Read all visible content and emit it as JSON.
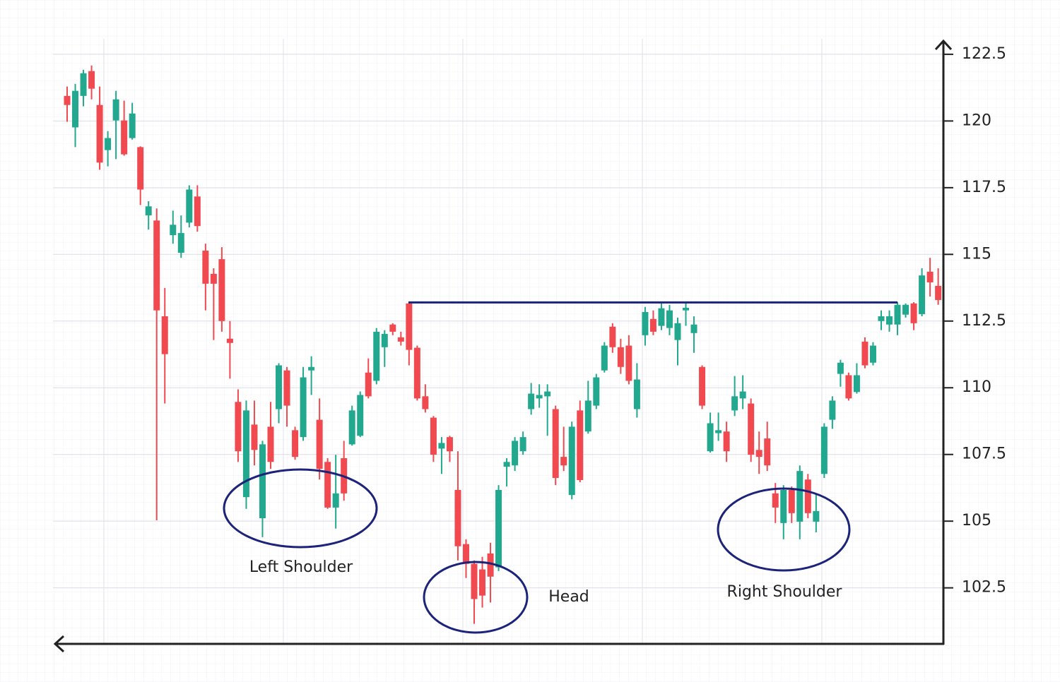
{
  "chart_data": {
    "type": "candlestick",
    "up_color": "#22a88e",
    "down_color": "#f04a50",
    "open": [
      120.94,
      119.76,
      120.94,
      121.87,
      120.6,
      118.91,
      120.02,
      120.02,
      119.36,
      119.02,
      116.46,
      116.27,
      112.68,
      115.72,
      115.06,
      116.19,
      117.17,
      115.14,
      114.27,
      114.82,
      111.84,
      109.47,
      105.9,
      108.62,
      105.11,
      108.54,
      109.2,
      110.65,
      108.41,
      108.15,
      110.65,
      108.8,
      107.22,
      105.51,
      107.36,
      107.88,
      108.2,
      110.57,
      110.26,
      111.52,
      112.37,
      111.89,
      113.16,
      111.5,
      109.68,
      108.88,
      107.72,
      108.15,
      106.17,
      104.14,
      103.4,
      103.19,
      103.79,
      103.27,
      107.04,
      107.09,
      107.62,
      109.2,
      109.6,
      109.68,
      109.2,
      107.41,
      105.98,
      109.15,
      108.36,
      109.33,
      110.65,
      112.29,
      111.52,
      111.58,
      109.2,
      111.97,
      112.58,
      112.32,
      112.24,
      111.79,
      112.9,
      112.05,
      110.78,
      107.62,
      108.3,
      108.36,
      109.15,
      109.6,
      109.41,
      107.67,
      108.1,
      106.04,
      104.93,
      106.17,
      104.98,
      106.56,
      104.98,
      106.77,
      108.8,
      110.52,
      110.47,
      109.84,
      111.73,
      110.94,
      112.5,
      112.37,
      112.37,
      112.74,
      113.16,
      112.76,
      114.35,
      113.82
    ],
    "high": [
      121.29,
      121.39,
      121.92,
      122.08,
      121.29,
      119.62,
      121.13,
      120.76,
      120.68,
      119.05,
      116.99,
      116.72,
      113.74,
      116.64,
      116.46,
      117.59,
      117.59,
      115.4,
      114.48,
      115.27,
      112.5,
      109.94,
      109.52,
      109.52,
      108.01,
      109.47,
      110.92,
      110.78,
      108.54,
      110.78,
      111.18,
      109.6,
      107.36,
      107.49,
      108.01,
      109.33,
      109.86,
      111.1,
      112.24,
      112.16,
      112.42,
      112.1,
      113.21,
      111.58,
      110.13,
      108.94,
      108.15,
      108.2,
      107.62,
      104.32,
      103.53,
      103.66,
      104.19,
      106.35,
      107.36,
      108.15,
      108.36,
      110.18,
      110.13,
      110.13,
      109.33,
      108.54,
      108.73,
      109.52,
      110.26,
      110.52,
      111.71,
      112.42,
      111.84,
      111.97,
      110.92,
      113.03,
      112.9,
      113.16,
      113.11,
      112.63,
      113.21,
      112.68,
      110.84,
      109.07,
      109.07,
      108.73,
      110.44,
      110.47,
      109.6,
      108.36,
      108.73,
      106.43,
      106.35,
      106.3,
      107.09,
      106.77,
      106.04,
      108.67,
      109.68,
      111.05,
      110.57,
      110.92,
      111.89,
      111.71,
      112.9,
      112.9,
      113.21,
      113.16,
      113.21,
      114.48,
      114.87,
      114.48
    ],
    "low": [
      119.97,
      119.02,
      120.55,
      120.81,
      118.17,
      118.3,
      118.57,
      118.7,
      119.3,
      116.85,
      115.93,
      105.03,
      109.41,
      115.4,
      114.87,
      116.01,
      115.85,
      112.9,
      111.79,
      112.1,
      110.34,
      107.22,
      105.46,
      107.09,
      104.4,
      106.96,
      108.67,
      108.54,
      107.3,
      108.01,
      109.73,
      106.56,
      105.46,
      104.72,
      105.77,
      107.83,
      108.15,
      109.6,
      110.13,
      110.78,
      111.97,
      111.58,
      110.84,
      109.52,
      109.07,
      107.22,
      106.77,
      107.22,
      103.53,
      102.87,
      101.15,
      101.76,
      101.95,
      103.13,
      106.3,
      106.88,
      107.49,
      108.99,
      109.25,
      108.2,
      106.35,
      106.88,
      105.82,
      106.46,
      108.28,
      109.2,
      110.57,
      111.31,
      110.52,
      110.13,
      108.88,
      111.58,
      111.97,
      112.16,
      111.97,
      110.84,
      112.32,
      111.31,
      109.2,
      107.57,
      108.01,
      107.22,
      108.94,
      109.2,
      107.22,
      106.77,
      106.88,
      104.93,
      104.32,
      104.93,
      104.32,
      105.11,
      104.58,
      106.62,
      108.46,
      110.04,
      109.52,
      109.78,
      110.73,
      110.84,
      112.16,
      112.1,
      111.97,
      112.63,
      112.16,
      112.68,
      113.42,
      113.11
    ],
    "close": [
      120.6,
      121.13,
      121.79,
      121.21,
      118.44,
      119.36,
      120.81,
      118.75,
      120.28,
      117.43,
      116.8,
      112.9,
      111.26,
      116.11,
      115.8,
      117.43,
      116.06,
      113.9,
      113.9,
      112.5,
      111.68,
      107.62,
      109.15,
      107.67,
      107.88,
      107.22,
      110.84,
      109.33,
      107.41,
      110.39,
      110.78,
      106.96,
      105.51,
      106.04,
      106.04,
      109.15,
      109.73,
      109.68,
      112.1,
      112.02,
      112.1,
      111.73,
      111.42,
      109.6,
      109.2,
      107.49,
      107.93,
      107.62,
      104.06,
      103.4,
      102.08,
      102.21,
      102.92,
      106.17,
      107.22,
      108.01,
      108.15,
      109.78,
      109.73,
      109.86,
      106.62,
      107.09,
      108.54,
      106.54,
      109.52,
      110.39,
      111.58,
      111.52,
      110.78,
      110.26,
      110.31,
      112.84,
      112.1,
      112.98,
      112.9,
      112.42,
      113.0,
      112.37,
      109.33,
      108.67,
      108.41,
      107.62,
      109.68,
      109.86,
      107.49,
      107.41,
      107.09,
      105.51,
      106.17,
      105.3,
      106.88,
      105.3,
      105.38,
      108.54,
      109.52,
      110.94,
      109.6,
      110.47,
      110.84,
      111.58,
      112.68,
      112.68,
      113.11,
      113.11,
      112.42,
      114.21,
      113.95,
      113.29
    ],
    "neckline": 113.2,
    "neckline_color": "#1c237a",
    "annotations": [
      "Left Shoulder",
      "Head",
      "Right Shoulder"
    ],
    "ylim": [
      100.4,
      123
    ],
    "yticks": [
      102.5,
      105,
      107.5,
      110,
      112.5,
      115,
      117.5,
      120,
      122.5
    ],
    "grid": true
  }
}
